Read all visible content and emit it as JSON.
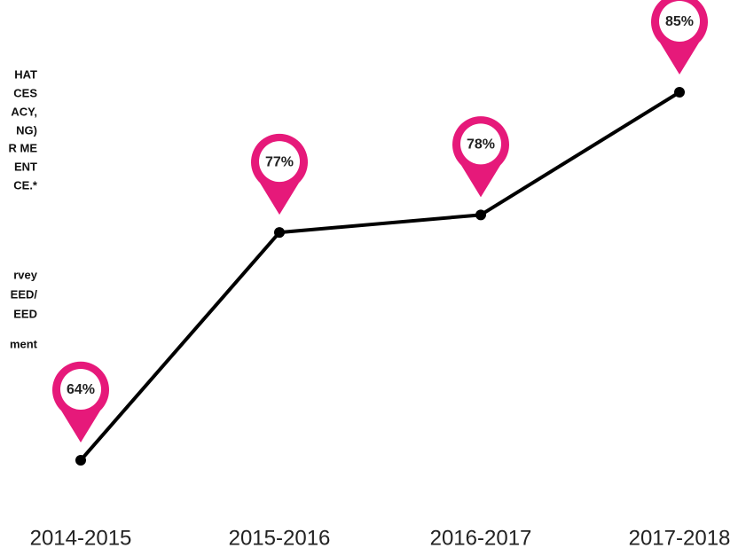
{
  "chart_data": {
    "type": "line",
    "annotation_lines": [
      "HAT",
      "CES",
      "ACY,",
      "NG)",
      "R ME",
      "ENT",
      "CE.*"
    ],
    "note_lines": [
      "rvey",
      "EED/",
      "EED",
      "ment"
    ],
    "categories": [
      "2014-2015",
      "2015-2016",
      "2016-2017",
      "2017-2018"
    ],
    "values": [
      64,
      77,
      78,
      85
    ],
    "value_labels": [
      "64%",
      "77%",
      "78%",
      "85%"
    ],
    "color": "#000000",
    "marker_color": "#e6197a"
  }
}
